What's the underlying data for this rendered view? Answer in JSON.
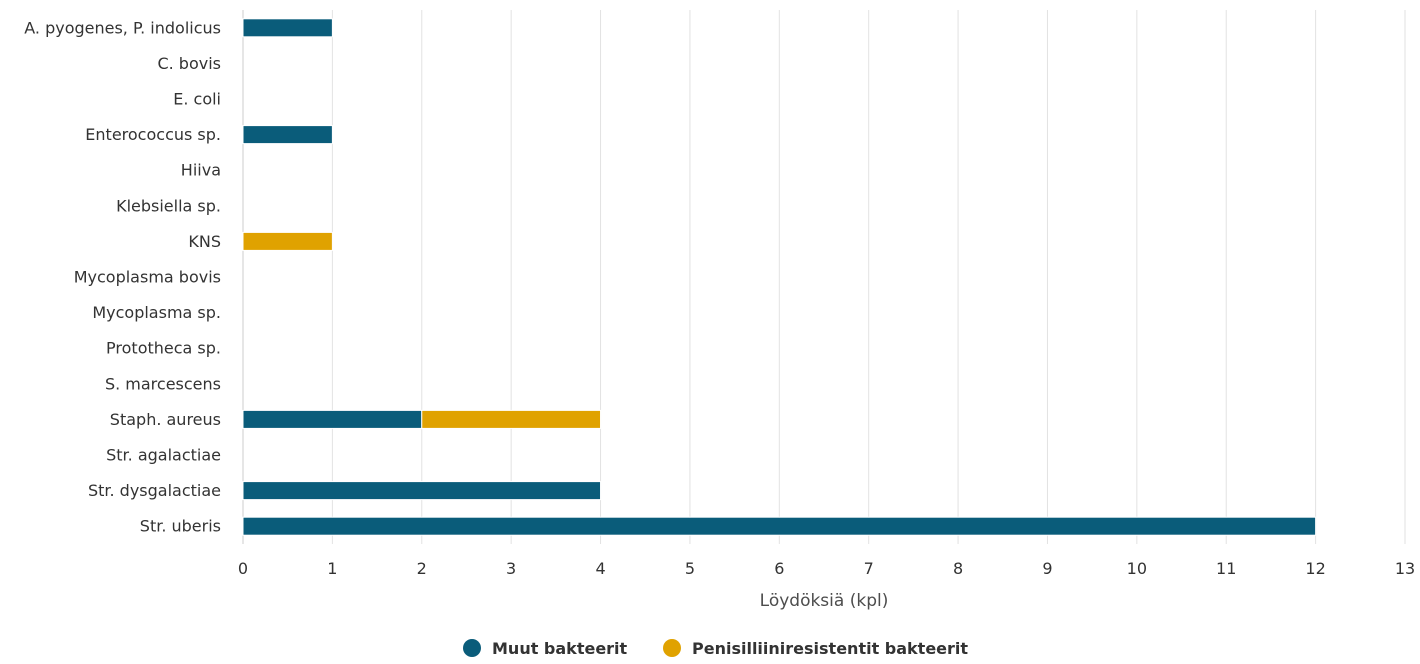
{
  "chart_data": {
    "type": "bar",
    "orientation": "horizontal",
    "stacked": true,
    "categories": [
      "A. pyogenes, P. indolicus",
      "C. bovis",
      "E. coli",
      "Enterococcus sp.",
      "Hiiva",
      "Klebsiella sp.",
      "KNS",
      "Mycoplasma bovis",
      "Mycoplasma sp.",
      "Prototheca sp.",
      "S. marcescens",
      "Staph. aureus",
      "Str. agalactiae",
      "Str. dysgalactiae",
      "Str. uberis"
    ],
    "series": [
      {
        "name": "Muut bakteerit",
        "color": "#0a5c7a",
        "values": [
          1,
          0,
          0,
          1,
          0,
          0,
          0,
          0,
          0,
          0,
          0,
          2,
          0,
          4,
          12
        ]
      },
      {
        "name": "Penisilliiniresistentit bakteerit",
        "color": "#e0a200",
        "values": [
          0,
          0,
          0,
          0,
          0,
          0,
          1,
          0,
          0,
          0,
          0,
          2,
          0,
          0,
          0
        ]
      }
    ],
    "xlabel": "Löydöksiä (kpl)",
    "xlim": [
      0,
      13
    ],
    "xticks": [
      0,
      1,
      2,
      3,
      4,
      5,
      6,
      7,
      8,
      9,
      10,
      11,
      12,
      13
    ],
    "grid": true,
    "legend_position": "bottom"
  }
}
